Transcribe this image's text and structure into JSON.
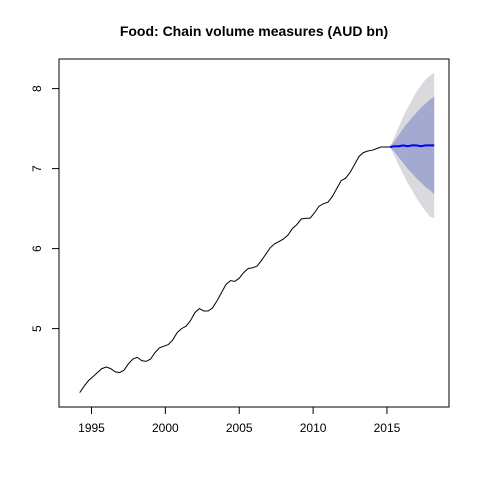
{
  "chart_data": {
    "type": "line",
    "title": "Food: Chain volume measures (AUD bn)",
    "xlabel": "",
    "ylabel": "",
    "xlim": [
      1992.8,
      2019.2
    ],
    "ylim": [
      4.02,
      8.37
    ],
    "x_ticks": [
      1995,
      2000,
      2005,
      2010,
      2015
    ],
    "x_tick_labels": [
      "1995",
      "2000",
      "2005",
      "2010",
      "2015"
    ],
    "y_ticks": [
      5,
      6,
      7,
      8
    ],
    "y_tick_labels": [
      "5",
      "6",
      "7",
      "8"
    ],
    "grid": false,
    "legend": "none",
    "colors": {
      "history": "#000000",
      "forecast": "#0000ff",
      "interval_80": "#a3a9cf",
      "interval_95": "#d9d9de"
    },
    "series": [
      {
        "x": [
          1994.2,
          1994.5,
          1994.8,
          1995.1,
          1995.4,
          1995.7,
          1996.0,
          1996.3,
          1996.6,
          1996.9,
          1997.2,
          1997.5,
          1997.8,
          1998.1,
          1998.4,
          1998.7,
          1999.0,
          1999.3,
          1999.6,
          1999.9,
          2000.2,
          2000.5,
          2000.8,
          2001.1,
          2001.4,
          2001.7,
          2002.0,
          2002.3,
          2002.6,
          2002.9,
          2003.2,
          2003.5,
          2003.8,
          2004.1,
          2004.4,
          2004.7,
          2005.0,
          2005.3,
          2005.6,
          2005.9,
          2006.2,
          2006.5,
          2006.8,
          2007.1,
          2007.4,
          2007.7,
          2008.0,
          2008.3,
          2008.6,
          2008.9,
          2009.2,
          2009.5,
          2009.8,
          2010.1,
          2010.4,
          2010.7,
          2011.0,
          2011.3,
          2011.6,
          2011.9,
          2012.2,
          2012.5,
          2012.8,
          2013.1,
          2013.4,
          2013.7,
          2014.0,
          2014.3,
          2014.6,
          2014.9,
          2015.2
        ],
        "y": [
          4.2,
          4.28,
          4.35,
          4.4,
          4.45,
          4.5,
          4.52,
          4.5,
          4.46,
          4.45,
          4.48,
          4.56,
          4.62,
          4.64,
          4.6,
          4.59,
          4.62,
          4.7,
          4.76,
          4.78,
          4.8,
          4.86,
          4.95,
          5.0,
          5.03,
          5.1,
          5.2,
          5.25,
          5.22,
          5.22,
          5.26,
          5.35,
          5.45,
          5.55,
          5.6,
          5.59,
          5.63,
          5.7,
          5.75,
          5.76,
          5.78,
          5.85,
          5.93,
          6.01,
          6.06,
          6.09,
          6.12,
          6.17,
          6.25,
          6.3,
          6.37,
          6.38,
          6.38,
          6.45,
          6.53,
          6.56,
          6.58,
          6.65,
          6.75,
          6.85,
          6.88,
          6.95,
          7.05,
          7.15,
          7.2,
          7.22,
          7.23,
          7.25,
          7.27,
          7.27,
          7.27
        ]
      },
      {
        "x": [
          2015.2,
          2015.5,
          2015.8,
          2016.1,
          2016.4,
          2016.7,
          2017.0,
          2017.3,
          2017.6,
          2017.9,
          2018.2
        ],
        "y": [
          7.27,
          7.28,
          7.28,
          7.29,
          7.28,
          7.29,
          7.29,
          7.28,
          7.29,
          7.29,
          7.29
        ],
        "lower_80": [
          7.27,
          7.21,
          7.14,
          7.07,
          7.0,
          6.94,
          6.88,
          6.83,
          6.77,
          6.73,
          6.68
        ],
        "upper_80": [
          7.27,
          7.34,
          7.42,
          7.5,
          7.57,
          7.64,
          7.7,
          7.76,
          7.81,
          7.86,
          7.9
        ],
        "lower_95": [
          7.27,
          7.16,
          7.04,
          6.93,
          6.82,
          6.73,
          6.63,
          6.55,
          6.47,
          6.4,
          6.38
        ],
        "upper_95": [
          7.27,
          7.39,
          7.52,
          7.65,
          7.76,
          7.86,
          7.96,
          8.04,
          8.11,
          8.16,
          8.2
        ]
      }
    ]
  }
}
